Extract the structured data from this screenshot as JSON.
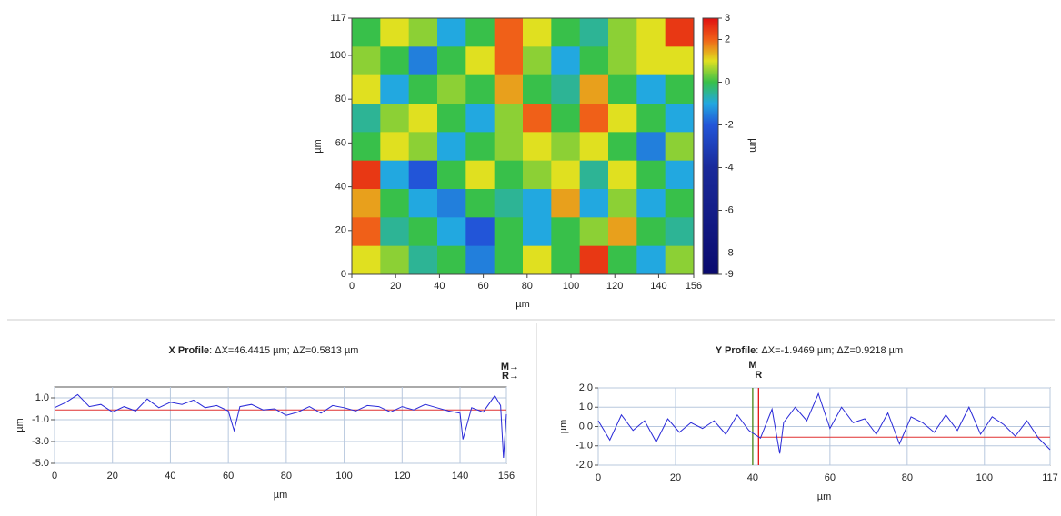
{
  "chart_data": [
    {
      "type": "heatmap",
      "xlabel": "µm",
      "ylabel": "µm",
      "colorbar_label": "µm",
      "xlim": [
        0,
        156
      ],
      "xticks": [
        0,
        20,
        40,
        60,
        80,
        100,
        120,
        140,
        156
      ],
      "ylim": [
        0,
        117
      ],
      "yticks": [
        0,
        20,
        40,
        60,
        80,
        100,
        117
      ],
      "clim": [
        -9,
        3
      ],
      "cticks": [
        3,
        2,
        0,
        -2,
        -4,
        -6,
        -8,
        -9
      ],
      "colorscale": [
        {
          "value": -9,
          "color": "#0a0a6e"
        },
        {
          "value": -4,
          "color": "#1a2a9a"
        },
        {
          "value": -2,
          "color": "#2255d8"
        },
        {
          "value": -1,
          "color": "#22a8e0"
        },
        {
          "value": 0,
          "color": "#38c04a"
        },
        {
          "value": 1,
          "color": "#e0e020"
        },
        {
          "value": 2,
          "color": "#f06018"
        },
        {
          "value": 3,
          "color": "#e01010"
        }
      ],
      "z": [
        [
          0,
          1,
          0.5,
          -1,
          0,
          2,
          1,
          0,
          -0.5,
          0.5,
          1,
          2.5
        ],
        [
          0.5,
          0,
          -1.5,
          0,
          1,
          2,
          0.5,
          -1,
          0,
          0.5,
          1,
          1
        ],
        [
          1,
          -1,
          0,
          0.5,
          0,
          1.5,
          0,
          -0.5,
          1.5,
          0,
          -1,
          0
        ],
        [
          -0.5,
          0.5,
          1,
          0,
          -1,
          0.5,
          2,
          0,
          2,
          1,
          0,
          -1
        ],
        [
          0,
          1,
          0.5,
          -1,
          0,
          0.5,
          1,
          0.5,
          1,
          0,
          -1.5,
          0.5
        ],
        [
          2.5,
          -1,
          -2,
          0,
          1,
          0,
          0.5,
          1,
          -0.5,
          1,
          0,
          -1
        ],
        [
          1.5,
          0,
          -1,
          -1.5,
          0,
          -0.5,
          -1,
          1.5,
          -1,
          0.5,
          -1,
          0
        ],
        [
          2,
          -0.5,
          0,
          -1,
          -2,
          0,
          -1,
          0,
          0.5,
          1.5,
          0,
          -0.5
        ],
        [
          1,
          0.5,
          -0.5,
          0,
          -1.5,
          0,
          1,
          0,
          2.5,
          0,
          -1,
          0.5
        ]
      ]
    },
    {
      "type": "line",
      "title": "X Profile",
      "subtitle": ": ΔX=46.4415 µm; ΔZ=0.5813 µm",
      "xlabel": "µm",
      "ylabel": "µm",
      "color": "#2a2ad8",
      "grid": true,
      "xlim": [
        0,
        156
      ],
      "xticks": [
        0,
        20,
        40,
        60,
        80,
        100,
        120,
        140,
        156
      ],
      "ylim": [
        -5,
        2
      ],
      "yticks": [
        {
          "value": 1,
          "label": "1.0"
        },
        {
          "value": -1,
          "label": "-1.0"
        },
        {
          "value": -3,
          "label": "-3.0"
        },
        {
          "value": -5,
          "label": "-5.0"
        }
      ],
      "reference_y": -0.1,
      "markers": [
        {
          "label": "M→",
          "color": "#3a7a00"
        },
        {
          "label": "R→",
          "color": "#e00000"
        }
      ],
      "x": [
        0,
        4,
        8,
        12,
        16,
        20,
        24,
        28,
        32,
        36,
        40,
        44,
        48,
        52,
        56,
        60,
        62,
        64,
        68,
        72,
        76,
        80,
        84,
        88,
        92,
        96,
        100,
        104,
        108,
        112,
        116,
        120,
        124,
        128,
        132,
        136,
        140,
        141,
        144,
        148,
        152,
        154,
        155,
        156
      ],
      "values": [
        0.1,
        0.6,
        1.3,
        0.2,
        0.4,
        -0.3,
        0.2,
        -0.2,
        0.9,
        0.1,
        0.6,
        0.4,
        0.8,
        0.1,
        0.3,
        -0.2,
        -2.0,
        0.2,
        0.4,
        -0.1,
        0.0,
        -0.6,
        -0.3,
        0.2,
        -0.4,
        0.3,
        0.1,
        -0.2,
        0.3,
        0.2,
        -0.3,
        0.2,
        -0.1,
        0.4,
        0.1,
        -0.2,
        -0.4,
        -2.8,
        0.1,
        -0.3,
        1.2,
        0.3,
        -4.5,
        -0.5
      ]
    },
    {
      "type": "line",
      "title": "Y Profile",
      "subtitle": ": ΔX=-1.9469 µm; ΔZ=0.9218 µm",
      "xlabel": "µm",
      "ylabel": "µm",
      "color": "#2a2ad8",
      "grid": true,
      "xlim": [
        0,
        117
      ],
      "xticks": [
        0,
        20,
        40,
        60,
        80,
        100,
        117
      ],
      "ylim": [
        -2,
        2
      ],
      "yticks": [
        {
          "value": 2,
          "label": "2.0"
        },
        {
          "value": 1,
          "label": "1.0"
        },
        {
          "value": 0,
          "label": "0.0"
        },
        {
          "value": -1,
          "label": "-1.0"
        },
        {
          "value": -2,
          "label": "-2.0"
        }
      ],
      "reference_y": -0.55,
      "markers": [
        {
          "label": "M",
          "x": 40,
          "color": "#3a7a00"
        },
        {
          "label": "R",
          "x": 41.5,
          "color": "#e00000"
        }
      ],
      "x": [
        0,
        3,
        6,
        9,
        12,
        15,
        18,
        21,
        24,
        27,
        30,
        33,
        36,
        39,
        42,
        45,
        47,
        48,
        51,
        54,
        57,
        60,
        63,
        66,
        69,
        72,
        75,
        78,
        81,
        84,
        87,
        90,
        93,
        96,
        99,
        102,
        105,
        108,
        111,
        114,
        117
      ],
      "values": [
        0.3,
        -0.7,
        0.6,
        -0.2,
        0.3,
        -0.8,
        0.4,
        -0.3,
        0.2,
        -0.1,
        0.3,
        -0.4,
        0.6,
        -0.2,
        -0.6,
        0.9,
        -1.4,
        0.2,
        1.0,
        0.3,
        1.7,
        -0.1,
        1.0,
        0.2,
        0.4,
        -0.4,
        0.7,
        -0.9,
        0.5,
        0.2,
        -0.3,
        0.6,
        -0.2,
        1.0,
        -0.4,
        0.5,
        0.1,
        -0.5,
        0.3,
        -0.6,
        -1.2
      ]
    }
  ]
}
